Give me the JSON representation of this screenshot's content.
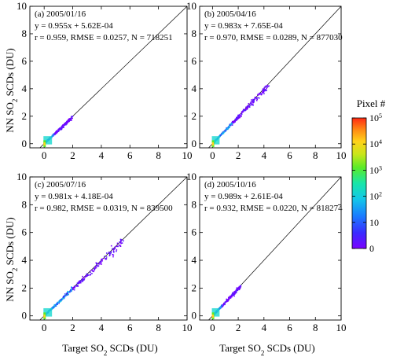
{
  "chart_data": [
    {
      "type": "scatter",
      "panel_label": "(a) 2005/01/16",
      "fit_text": "y = 0.955x + 5.62E-04",
      "stats_text": "r = 0.959, RMSE = 0.0257, N = 718251",
      "xlim": [
        -1,
        10
      ],
      "ylim": [
        -0.3,
        10
      ],
      "xticks": [
        "0",
        "2",
        "4",
        "6",
        "8",
        "10"
      ],
      "yticks": [
        "0",
        "2",
        "4",
        "6",
        "8",
        "10"
      ],
      "one_to_one_line": true,
      "cloud_extent_x": [
        0,
        2.0
      ],
      "cloud_extent_y": [
        0,
        2.2
      ]
    },
    {
      "type": "scatter",
      "panel_label": "(b) 2005/04/16",
      "fit_text": "y = 0.983x + 7.65E-04",
      "stats_text": "r = 0.970, RMSE = 0.0289, N = 877030",
      "xlim": [
        -1,
        10
      ],
      "ylim": [
        -0.3,
        10
      ],
      "xticks": [
        "0",
        "2",
        "4",
        "6",
        "8",
        "10"
      ],
      "yticks": [
        "0",
        "2",
        "4",
        "6",
        "8",
        "10"
      ],
      "one_to_one_line": true,
      "cloud_extent_x": [
        0,
        4.4
      ],
      "cloud_extent_y": [
        0,
        4.3
      ]
    },
    {
      "type": "scatter",
      "panel_label": "(c) 2005/07/16",
      "fit_text": "y = 0.981x + 4.18E-04",
      "stats_text": "r = 0.982, RMSE = 0.0319, N = 839500",
      "xlim": [
        -1,
        10
      ],
      "ylim": [
        -0.3,
        10
      ],
      "xticks": [
        "0",
        "2",
        "4",
        "6",
        "8",
        "10"
      ],
      "yticks": [
        "0",
        "2",
        "4",
        "6",
        "8",
        "10"
      ],
      "one_to_one_line": true,
      "cloud_extent_x": [
        0,
        5.6
      ],
      "cloud_extent_y": [
        0,
        5.6
      ]
    },
    {
      "type": "scatter",
      "panel_label": "(d) 2005/10/16",
      "fit_text": "y = 0.989x + 2.61E-04",
      "stats_text": "r = 0.932, RMSE = 0.0220, N = 818274",
      "xlim": [
        -1,
        10
      ],
      "ylim": [
        -0.3,
        10
      ],
      "xticks": [
        "0",
        "2",
        "4",
        "6",
        "8",
        "10"
      ],
      "yticks": [
        "0",
        "2",
        "4",
        "6",
        "8",
        "10"
      ],
      "one_to_one_line": true,
      "cloud_extent_x": [
        0,
        2.2
      ],
      "cloud_extent_y": [
        0,
        2.1
      ]
    }
  ],
  "axes": {
    "ylabel_pre": "NN SO",
    "ylabel_sub": "2",
    "ylabel_post": " SCDs (DU)",
    "xlabel_pre": "Target SO",
    "xlabel_sub": "2",
    "xlabel_post": " SCDs (DU)"
  },
  "colorbar": {
    "title": "Pixel #",
    "scale": "log",
    "ticks": [
      {
        "label": "10",
        "exp": "5",
        "frac": 1.0
      },
      {
        "label": "10",
        "exp": "4",
        "frac": 0.8
      },
      {
        "label": "10",
        "exp": "3",
        "frac": 0.6
      },
      {
        "label": "10",
        "exp": "2",
        "frac": 0.4
      },
      {
        "label": "10",
        "exp": "",
        "frac": 0.2
      },
      {
        "label": "0",
        "exp": "",
        "frac": 0.0
      }
    ],
    "colors": [
      "#7a00ff",
      "#3a2cff",
      "#1a7dff",
      "#14c8e8",
      "#19e6a8",
      "#5aeb28",
      "#c8e61a",
      "#ffd21a",
      "#ff8a14",
      "#ff2a14"
    ]
  }
}
